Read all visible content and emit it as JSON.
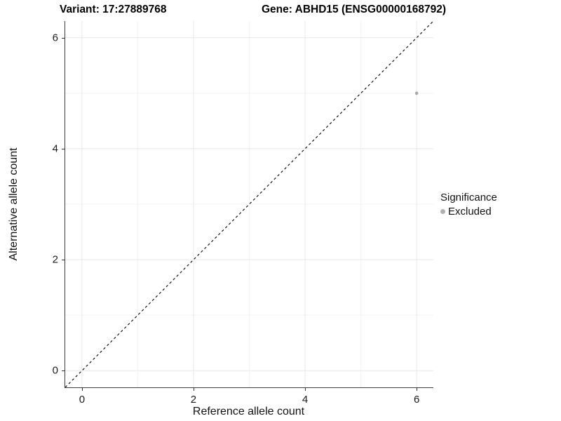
{
  "chart_data": {
    "type": "scatter",
    "title_left": "Variant: 17:27889768",
    "title_right": "Gene: ABHD15 (ENSG00000168792)",
    "xlabel": "Reference allele count",
    "ylabel": "Alternative allele count",
    "xlim": [
      -0.3,
      6.3
    ],
    "ylim": [
      -0.3,
      6.3
    ],
    "x_ticks": [
      0,
      2,
      4,
      6
    ],
    "y_ticks": [
      0,
      2,
      4,
      6
    ],
    "gridlines_at": [
      0,
      1,
      2,
      3,
      4,
      5,
      6
    ],
    "grid": "on",
    "points": [
      {
        "x": 6,
        "y": 5,
        "series": "Excluded"
      }
    ],
    "reference_line": {
      "type": "identity y=x",
      "style": "dashed",
      "color": "#000000"
    },
    "legend": {
      "title": "Significance",
      "position": "right",
      "entries": [
        {
          "label": "Excluded",
          "color": "#b0b0b0",
          "marker": "circle"
        }
      ]
    },
    "colors": {
      "point": "#a8a8a8",
      "grid_major": "#e7e7e7",
      "grid_minor": "#f2f2f2",
      "axis_line": "#3c3c3c",
      "tick_text": "#1a1a1a"
    }
  }
}
